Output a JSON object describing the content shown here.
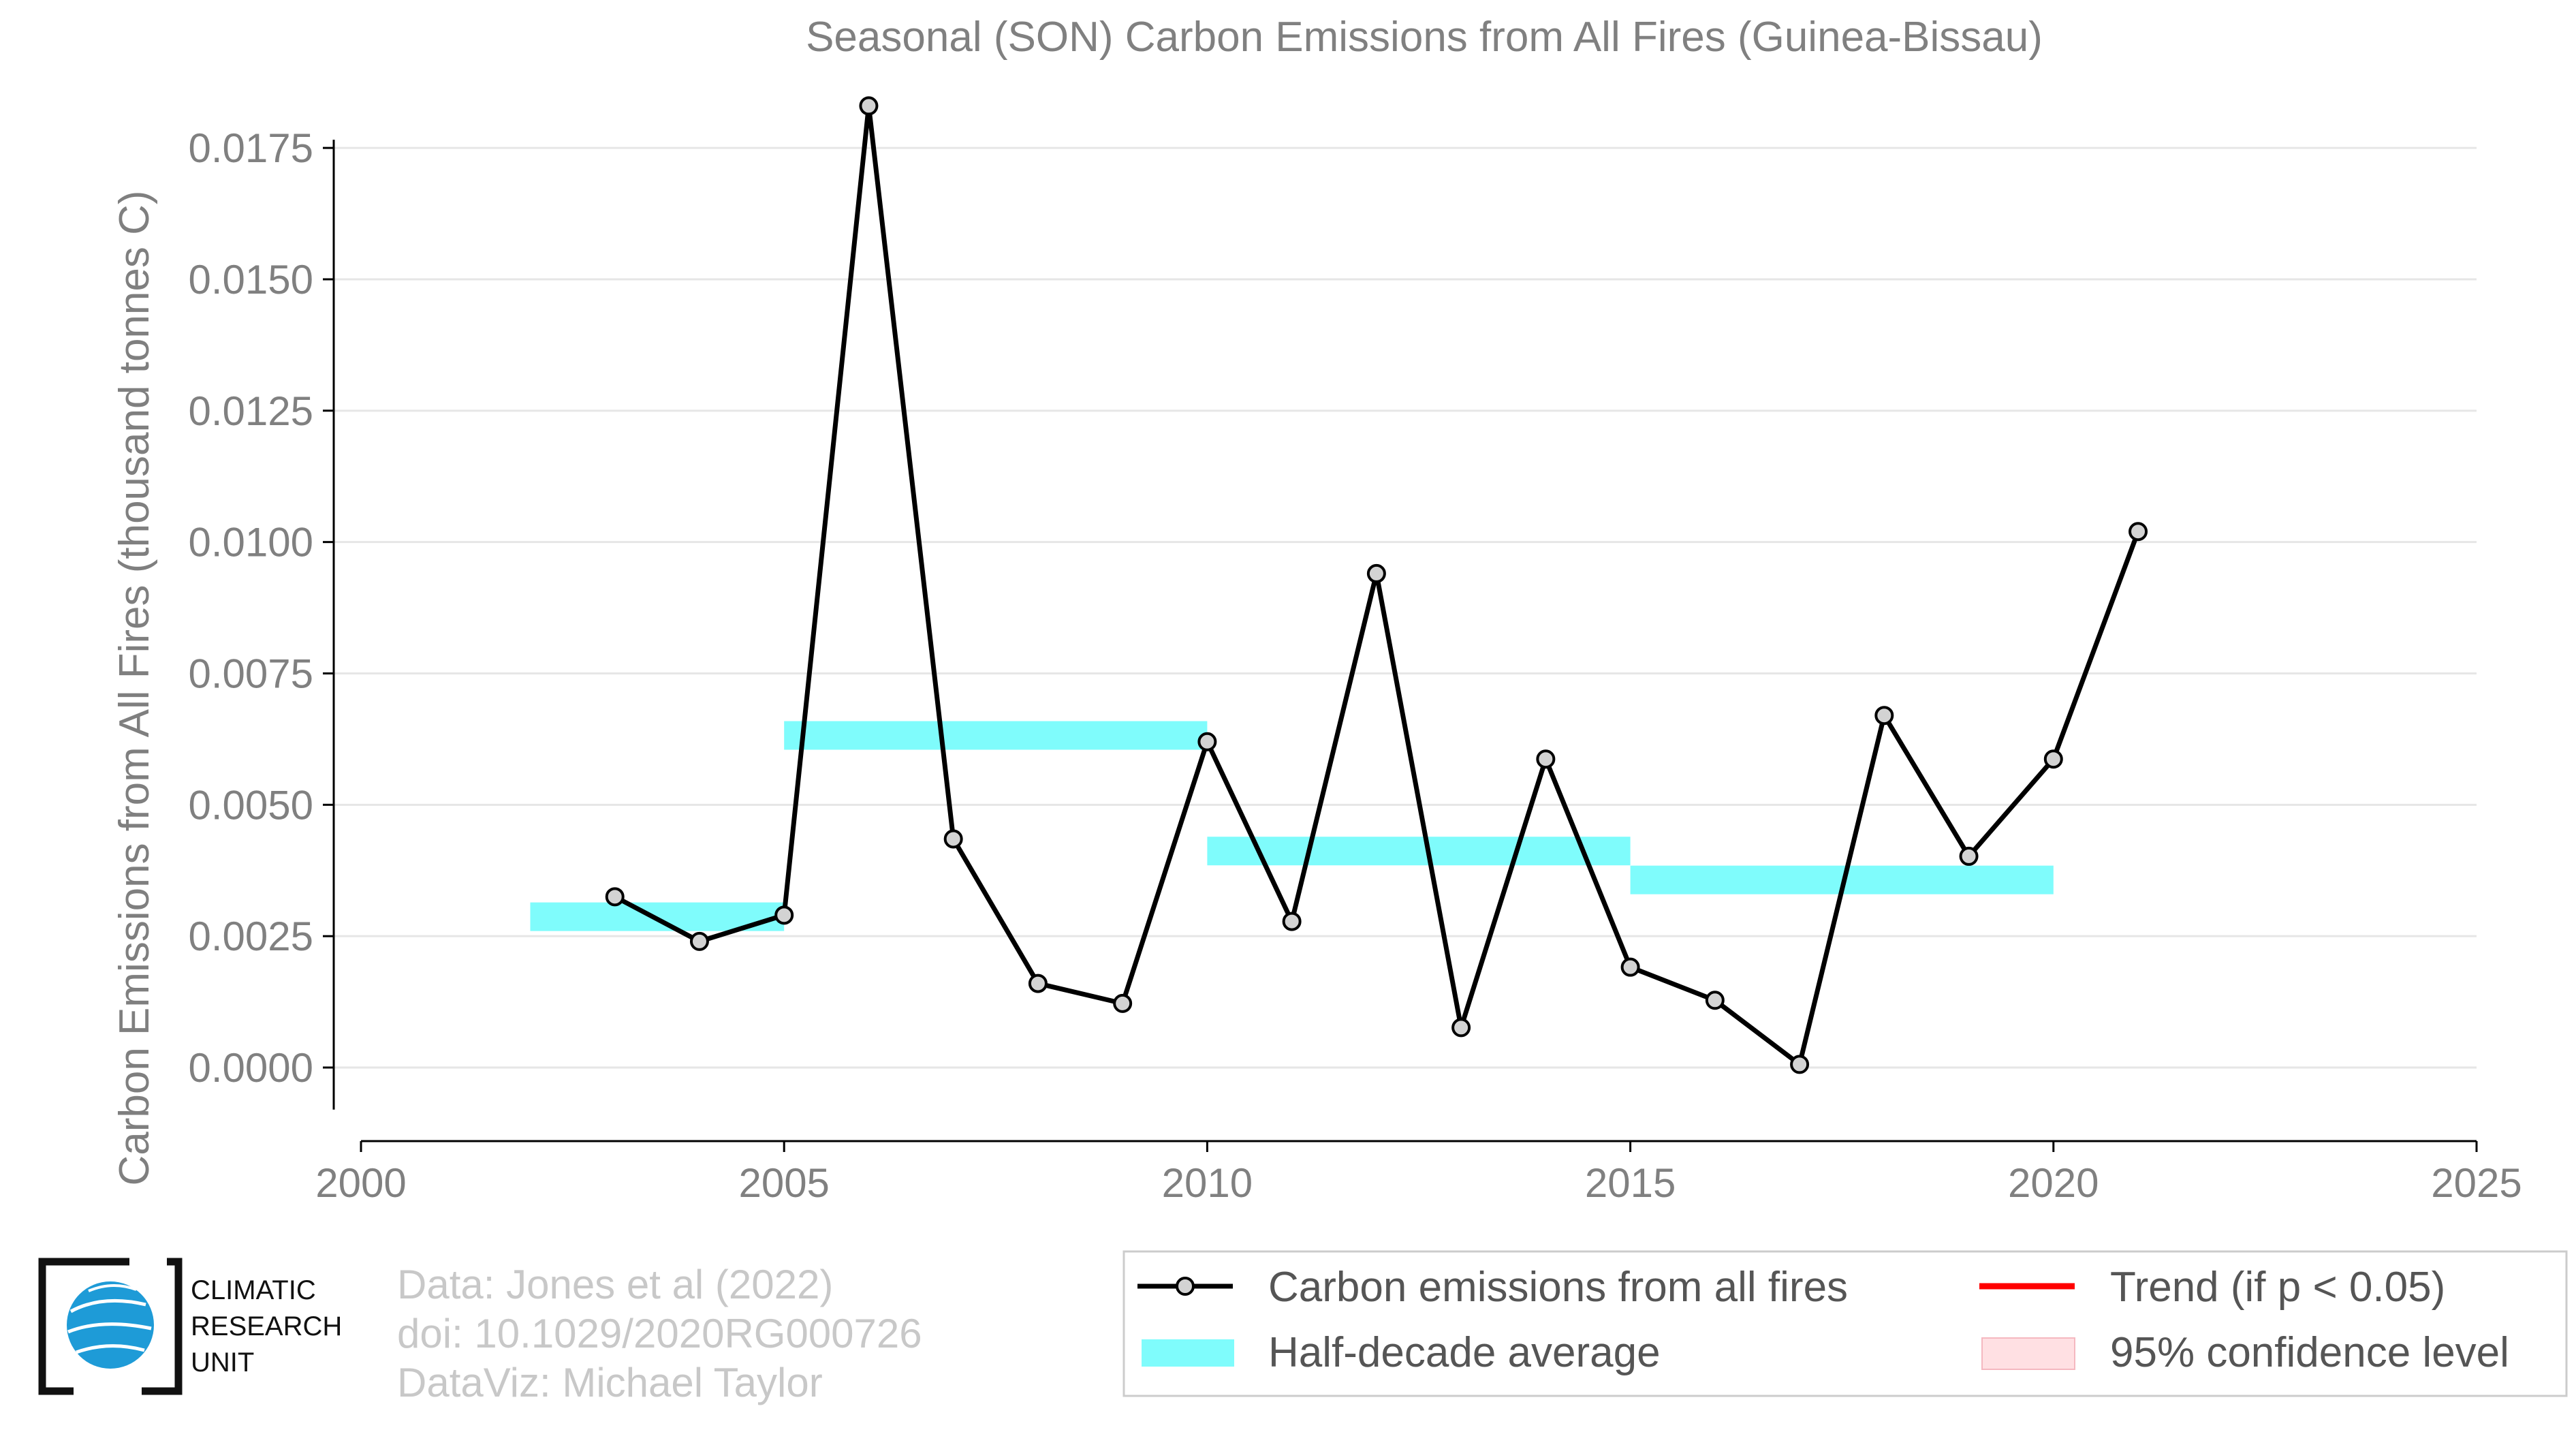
{
  "chart_data": {
    "type": "line",
    "title": "Seasonal (SON) Carbon Emissions from All Fires (Guinea-Bissau)",
    "xlabel": "",
    "ylabel": "Carbon Emissions from All Fires (thousand tonnes C)",
    "xlim": [
      2000,
      2025
    ],
    "ylim": [
      -0.0014,
      0.0185
    ],
    "x_ticks": [
      "2000",
      "2005",
      "2010",
      "2015",
      "2020",
      "2025"
    ],
    "y_ticks": [
      "0.0000",
      "0.0025",
      "0.0050",
      "0.0075",
      "0.0100",
      "0.0125",
      "0.0150",
      "0.0175"
    ],
    "grid": true,
    "series": [
      {
        "name": "Carbon emissions from all fires",
        "color": "#000000",
        "marker_fill": "#d3d3d3",
        "x": [
          2003,
          2004,
          2005,
          2006,
          2007,
          2008,
          2009,
          2010,
          2011,
          2012,
          2013,
          2014,
          2015,
          2016,
          2017,
          2018,
          2019,
          2020,
          2021
        ],
        "y": [
          0.00325,
          0.0024,
          0.0029,
          0.0183,
          0.00435,
          0.0016,
          0.00122,
          0.0062,
          0.00278,
          0.0094,
          0.00076,
          0.00587,
          0.00191,
          0.00128,
          6e-05,
          0.0067,
          0.00402,
          0.00587,
          0.0102
        ]
      }
    ],
    "half_decade_average": {
      "name": "Half-decade average",
      "color": "#7ffcfc",
      "segments": [
        {
          "x0": 2002,
          "x1": 2005,
          "y": 0.00287
        },
        {
          "x0": 2005,
          "x1": 2010,
          "y": 0.00632
        },
        {
          "x0": 2010,
          "x1": 2015,
          "y": 0.00412
        },
        {
          "x0": 2015,
          "x1": 2020,
          "y": 0.00357
        }
      ]
    },
    "legend": {
      "placement": "bottom-right",
      "items": [
        {
          "label": "Carbon emissions from all fires",
          "kind": "line-marker",
          "color": "#000000"
        },
        {
          "label": "Trend (if p < 0.05)",
          "kind": "line",
          "color": "#ff0000"
        },
        {
          "label": "Half-decade average",
          "kind": "band",
          "color": "#7ffcfc"
        },
        {
          "label": "95% confidence level",
          "kind": "band",
          "color": "#ffe0e3"
        }
      ]
    }
  },
  "credits": {
    "lines": [
      "Data: Jones et al (2022)",
      "doi: 10.1029/2020RG000726",
      "DataViz: Michael Taylor"
    ]
  },
  "logo": {
    "lines": [
      "CLIMATIC",
      "RESEARCH",
      "UNIT"
    ]
  }
}
